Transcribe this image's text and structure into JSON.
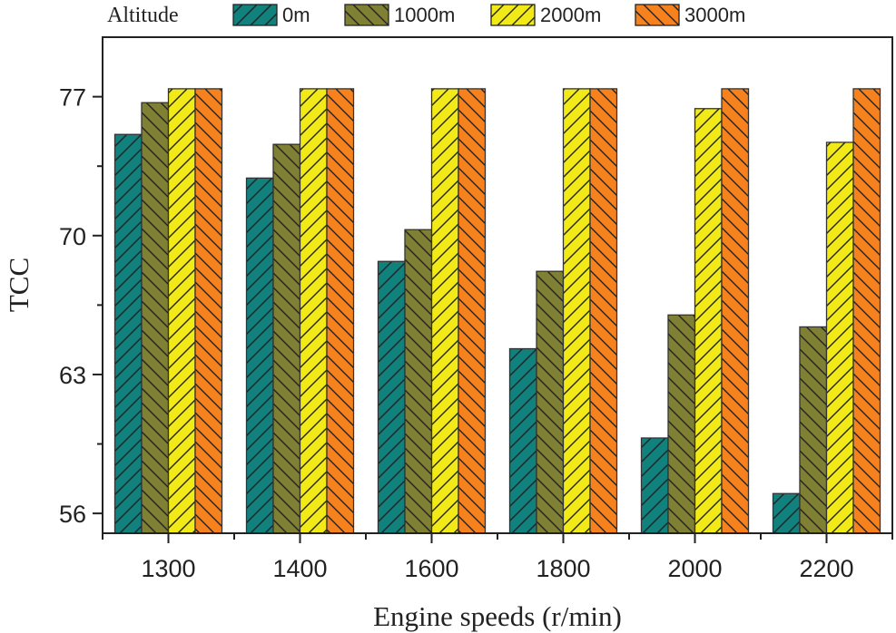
{
  "chart_data": {
    "type": "bar",
    "title": "",
    "xlabel": "Engine speeds (r/min)",
    "ylabel": "TCC",
    "categories": [
      "1300",
      "1400",
      "1600",
      "1800",
      "2000",
      "2200"
    ],
    "ylim": [
      55,
      80
    ],
    "yticks": [
      56,
      63,
      70,
      77
    ],
    "grid": false,
    "legend": {
      "title": "Altitude",
      "placement": "top"
    },
    "series": [
      {
        "name": "0m",
        "color": "#10817d",
        "hatch": "forward-diagonal",
        "values": [
          75.1,
          72.9,
          68.7,
          64.3,
          59.8,
          57.0
        ]
      },
      {
        "name": "1000m",
        "color": "#7f8033",
        "hatch": "back-diagonal",
        "values": [
          76.7,
          74.6,
          70.3,
          68.2,
          66.0,
          65.4
        ]
      },
      {
        "name": "2000m",
        "color": "#f2ea16",
        "hatch": "forward-diagonal",
        "values": [
          77.4,
          77.4,
          77.4,
          77.4,
          76.4,
          74.7
        ]
      },
      {
        "name": "3000m",
        "color": "#f5821f",
        "hatch": "back-diagonal",
        "values": [
          77.4,
          77.4,
          77.4,
          77.4,
          77.4,
          77.4
        ]
      }
    ]
  }
}
